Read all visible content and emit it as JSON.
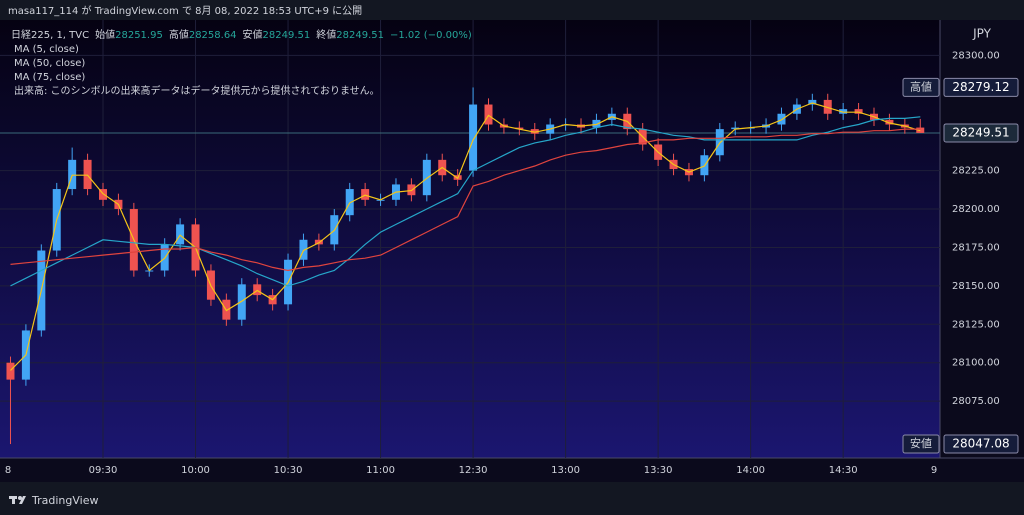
{
  "header": {
    "title": "masa117_114 が TradingView.com で 8月 08, 2022 18:53 UTC+9 に公開"
  },
  "chart_data": {
    "type": "candlestick",
    "legend": {
      "symbol": "日経225, 1, TVC",
      "items": [
        {
          "label": "始値",
          "value": 28251.95
        },
        {
          "label": "高値",
          "value": 28258.64
        },
        {
          "label": "安値",
          "value": 28249.51
        },
        {
          "label": "終値",
          "value": 28249.51
        }
      ],
      "change": "−1.02 (−0.00%)",
      "volume_note": "出来高: このシンボルの出来高データはデータ提供元から提供されておりません。"
    },
    "categories": [
      null,
      null,
      null,
      null,
      null,
      null,
      "09:30",
      null,
      null,
      null,
      null,
      null,
      "10:00",
      null,
      null,
      null,
      null,
      null,
      "10:30",
      null,
      null,
      null,
      null,
      null,
      "11:00",
      null,
      null,
      null,
      null,
      null,
      "12:30",
      null,
      null,
      null,
      null,
      null,
      "13:00",
      null,
      null,
      null,
      null,
      null,
      "13:30",
      null,
      null,
      null,
      null,
      null,
      "14:00",
      null,
      null,
      null,
      null,
      null,
      "14:30",
      null,
      null,
      null,
      null,
      null
    ],
    "date_start": "8",
    "date_end": "9",
    "open": [
      28100,
      28089,
      28121,
      28173,
      28213,
      28232,
      28213,
      28206,
      28200,
      28160,
      28160,
      28177,
      28190,
      28160,
      28141,
      28128,
      28151,
      28144,
      28138,
      28167,
      28180,
      28177,
      28196,
      28213,
      28206,
      28206,
      28216,
      28209,
      28232,
      28222,
      28225,
      28268,
      28255,
      28253,
      28252,
      28249,
      28255,
      28255,
      28253,
      28258,
      28262,
      28252,
      28242,
      28232,
      28226,
      28222,
      28235,
      28252,
      28253,
      28253,
      28255,
      28262,
      28268,
      28271,
      28262,
      28265,
      28262,
      28258,
      28255,
      28253
    ],
    "high": [
      28104,
      28125,
      28177,
      28217,
      28240,
      28236,
      28217,
      28210,
      28204,
      28164,
      28181,
      28194,
      28194,
      28164,
      28145,
      28155,
      28155,
      28148,
      28171,
      28184,
      28184,
      28200,
      28217,
      28217,
      28210,
      28220,
      28220,
      28236,
      28236,
      28226,
      28279.12,
      28272,
      28259,
      28257,
      28256,
      28259,
      28259,
      28259,
      28262,
      28266,
      28266,
      28256,
      28246,
      28236,
      28230,
      28239,
      28256,
      28257,
      28257,
      28259,
      28266,
      28272,
      28275,
      28275,
      28269,
      28269,
      28266,
      28262,
      28259,
      28258.64
    ],
    "low": [
      28047.08,
      28085,
      28117,
      28169,
      28209,
      28209,
      28202,
      28196,
      28156,
      28156,
      28156,
      28173,
      28156,
      28137,
      28124,
      28124,
      28140,
      28134,
      28134,
      28163,
      28173,
      28173,
      28192,
      28202,
      28202,
      28202,
      28205,
      28205,
      28218,
      28215,
      28221,
      28251,
      28249,
      28248,
      28245,
      28245,
      28251,
      28249,
      28249,
      28254,
      28248,
      28238,
      28228,
      28222,
      28218,
      28218,
      28231,
      28248,
      28249,
      28249,
      28251,
      28258,
      28264,
      28258,
      28258,
      28258,
      28254,
      28251,
      28249,
      28249.51
    ],
    "close": [
      28089,
      28121,
      28173,
      28213,
      28232,
      28213,
      28206,
      28200,
      28160,
      28160,
      28177,
      28190,
      28160,
      28141,
      28128,
      28151,
      28144,
      28138,
      28167,
      28180,
      28177,
      28196,
      28213,
      28206,
      28206,
      28216,
      28209,
      28232,
      28222,
      28219,
      28268,
      28255,
      28253,
      28252,
      28249,
      28255,
      28255,
      28253,
      28258,
      28262,
      28252,
      28242,
      28232,
      28226,
      28222,
      28235,
      28252,
      28253,
      28253,
      28255,
      28262,
      28268,
      28271,
      28262,
      28265,
      28262,
      28258,
      28255,
      28253,
      28249.51
    ],
    "up_color": "#42a5f5",
    "down_color": "#ef5350",
    "series": [
      {
        "name": "MA (5, close)",
        "color": "#f5c518",
        "values": [
          28095,
          28105,
          28147,
          28193,
          28222,
          28222,
          28210,
          28203,
          28180,
          28160,
          28168,
          28183,
          28175,
          28150,
          28134,
          28140,
          28147,
          28141,
          28152,
          28173,
          28178,
          28186,
          28204,
          28209,
          28206,
          28211,
          28212,
          28220,
          28227,
          28220,
          28245,
          28261,
          28254,
          28252,
          28250,
          28252,
          28255,
          28254,
          28255,
          28260,
          28257,
          28247,
          28237,
          28229,
          28224,
          28228,
          28243,
          28252,
          28253,
          28254,
          28258,
          28265,
          28269,
          28266,
          28263,
          28263,
          28260,
          28256,
          28254,
          28251
        ]
      },
      {
        "name": "MA (50, close)",
        "color": "#26a6c9",
        "values": [
          28150,
          28155,
          28160,
          28165,
          28170,
          28175,
          28180,
          28179,
          28178,
          28177,
          28177,
          28176,
          28175,
          28171,
          28167,
          28163,
          28158,
          28154,
          28150,
          28153,
          28157,
          28160,
          28168,
          28177,
          28185,
          28190,
          28195,
          28200,
          28205,
          28210,
          28225,
          28230,
          28235,
          28240,
          28243,
          28245,
          28248,
          28250,
          28253,
          28255,
          28253,
          28252,
          28250,
          28248,
          28247,
          28245,
          28245,
          28245,
          28245,
          28245,
          28245,
          28245,
          28248,
          28250,
          28253,
          28255,
          28258,
          28259,
          28259,
          28260
        ]
      },
      {
        "name": "MA (75, close)",
        "color": "#e0443e",
        "values": [
          28164,
          28165,
          28166,
          28167,
          28168,
          28169,
          28170,
          28171,
          28172,
          28173,
          28174,
          28174,
          28175,
          28172,
          28170,
          28167,
          28165,
          28162,
          28160,
          28162,
          28163,
          28165,
          28167,
          28168,
          28170,
          28175,
          28180,
          28185,
          28190,
          28195,
          28215,
          28218,
          28222,
          28225,
          28228,
          28232,
          28235,
          28237,
          28238,
          28240,
          28242,
          28243,
          28245,
          28245,
          28246,
          28246,
          28246,
          28247,
          28247,
          28247,
          28248,
          28248,
          28249,
          28249,
          28250,
          28250,
          28251,
          28251,
          28252,
          28252
        ]
      }
    ],
    "ylim": [
      28038,
      28323
    ],
    "yticks": [
      {
        "value": 28075,
        "label": "28075.00"
      },
      {
        "value": 28100,
        "label": "28100.00"
      },
      {
        "value": 28125,
        "label": "28125.00"
      },
      {
        "value": 28150,
        "label": "28150.00"
      },
      {
        "value": 28175,
        "label": "28175.00"
      },
      {
        "value": 28200,
        "label": "28200.00"
      },
      {
        "value": 28225,
        "label": "28225.00"
      },
      {
        "value": 28300,
        "label": "28300.00"
      }
    ],
    "y_unit": "JPY",
    "grid": true,
    "high_marker": {
      "label": "高値",
      "value": 28279.12
    },
    "last_price": 28249.51,
    "low_marker": {
      "label": "安値",
      "value": 28047.08
    }
  },
  "footer": {
    "brand": "TradingView"
  }
}
